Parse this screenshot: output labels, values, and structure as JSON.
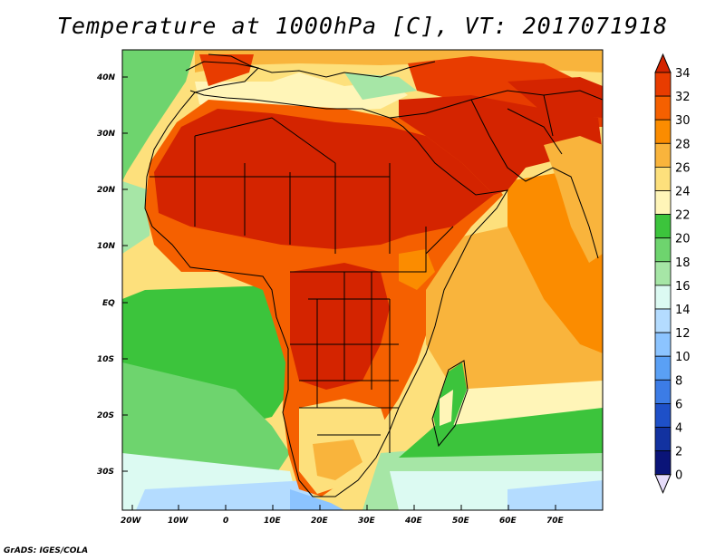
{
  "title": "Temperature at 1000hPa [C], VT: 2017071918",
  "credit": "GrADS: IGES/COLA",
  "map": {
    "lat_labels": [
      "40N",
      "30N",
      "20N",
      "10N",
      "EQ",
      "10S",
      "20S",
      "30S"
    ],
    "lon_labels": [
      "20W",
      "10W",
      "0",
      "10E",
      "20E",
      "30E",
      "40E",
      "50E",
      "60E",
      "70E"
    ]
  },
  "colorbar": {
    "labels": [
      "34",
      "32",
      "30",
      "28",
      "26",
      "24",
      "22",
      "20",
      "18",
      "16",
      "14",
      "12",
      "10",
      "8",
      "6",
      "4",
      "2",
      "0"
    ],
    "colors": [
      "#d42400",
      "#e83c00",
      "#f56000",
      "#fb8c00",
      "#f9b43c",
      "#fde07c",
      "#fff5b8",
      "#3cc43c",
      "#6ed46e",
      "#a6e6a6",
      "#dcfaf2",
      "#b4dcff",
      "#8cc4ff",
      "#5aa0f5",
      "#3c7ce6",
      "#1e50c8",
      "#1232a0",
      "#0a1478",
      "#e6dcfa"
    ]
  }
}
